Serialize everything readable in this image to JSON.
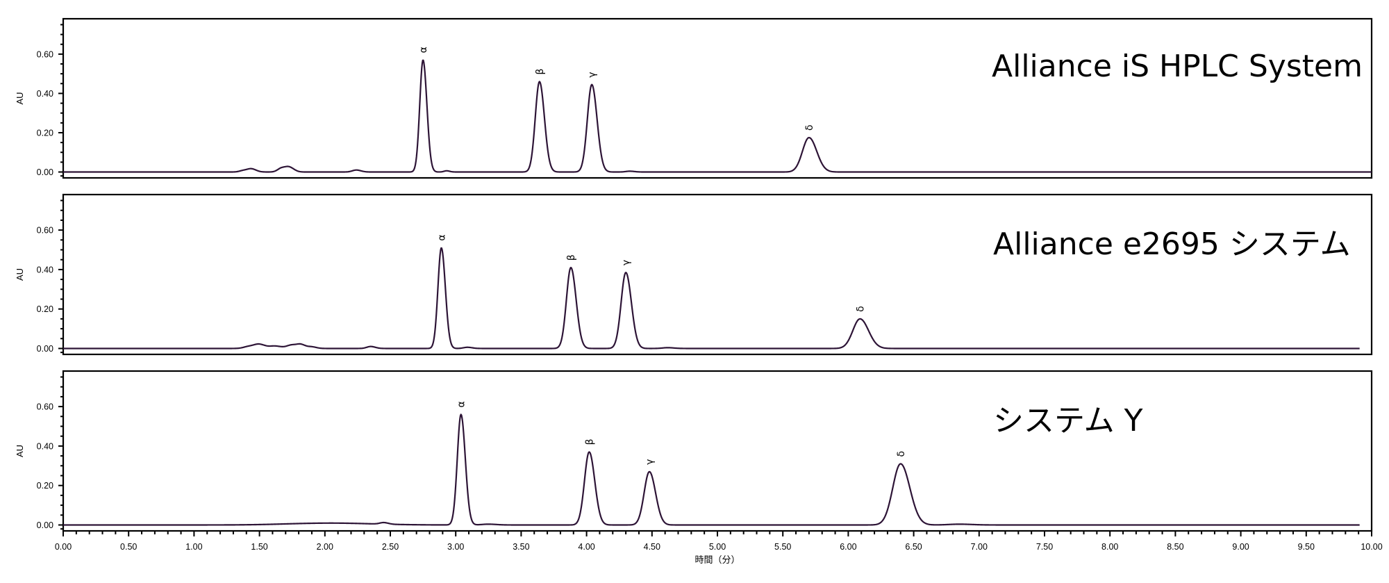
{
  "chart_data": {
    "type": "line",
    "xlabel": "時間（分）",
    "xlim": [
      0.0,
      10.0
    ],
    "x_ticks": [
      "0.00",
      "0.50",
      "1.00",
      "1.50",
      "2.00",
      "2.50",
      "3.00",
      "3.50",
      "4.00",
      "4.50",
      "5.00",
      "5.50",
      "6.00",
      "6.50",
      "7.00",
      "7.50",
      "8.00",
      "8.50",
      "9.00",
      "9.50",
      "10.00"
    ],
    "line_color": "#2d1436",
    "panels": [
      {
        "title": "Alliance iS HPLC System",
        "ylabel": "AU",
        "ylim": [
          -0.03,
          0.78
        ],
        "y_ticks": [
          "0.00",
          "0.20",
          "0.40",
          "0.60"
        ],
        "y_tick_values": [
          0.0,
          0.2,
          0.4,
          0.6
        ],
        "x_end": 10.0,
        "peaks": [
          {
            "label": "α",
            "rt": 2.75,
            "height": 0.57,
            "width": 0.025
          },
          {
            "label": "β",
            "rt": 3.64,
            "height": 0.46,
            "width": 0.032
          },
          {
            "label": "γ",
            "rt": 4.04,
            "height": 0.445,
            "width": 0.034
          },
          {
            "label": "δ",
            "rt": 5.7,
            "height": 0.175,
            "width": 0.05
          }
        ],
        "minor_peaks": [
          {
            "rt": 1.38,
            "height": 0.008,
            "width": 0.03
          },
          {
            "rt": 1.44,
            "height": 0.015,
            "width": 0.03
          },
          {
            "rt": 1.67,
            "height": 0.02,
            "width": 0.03
          },
          {
            "rt": 1.73,
            "height": 0.022,
            "width": 0.03
          },
          {
            "rt": 2.24,
            "height": 0.01,
            "width": 0.03
          },
          {
            "rt": 2.93,
            "height": 0.006,
            "width": 0.02
          },
          {
            "rt": 4.33,
            "height": 0.004,
            "width": 0.03
          }
        ]
      },
      {
        "title": "Alliance e2695 システム",
        "ylabel": "AU",
        "ylim": [
          -0.03,
          0.78
        ],
        "y_ticks": [
          "0.00",
          "0.20",
          "0.40",
          "0.60"
        ],
        "y_tick_values": [
          0.0,
          0.2,
          0.4,
          0.6
        ],
        "x_end": 9.91,
        "peaks": [
          {
            "label": "α",
            "rt": 2.89,
            "height": 0.51,
            "width": 0.026
          },
          {
            "label": "β",
            "rt": 3.88,
            "height": 0.41,
            "width": 0.034
          },
          {
            "label": "γ",
            "rt": 4.3,
            "height": 0.385,
            "width": 0.036
          },
          {
            "label": "δ",
            "rt": 6.09,
            "height": 0.15,
            "width": 0.055
          }
        ],
        "minor_peaks": [
          {
            "rt": 1.42,
            "height": 0.01,
            "width": 0.04
          },
          {
            "rt": 1.5,
            "height": 0.02,
            "width": 0.04
          },
          {
            "rt": 1.62,
            "height": 0.012,
            "width": 0.04
          },
          {
            "rt": 1.75,
            "height": 0.018,
            "width": 0.04
          },
          {
            "rt": 1.82,
            "height": 0.016,
            "width": 0.03
          },
          {
            "rt": 1.9,
            "height": 0.008,
            "width": 0.03
          },
          {
            "rt": 2.35,
            "height": 0.01,
            "width": 0.03
          },
          {
            "rt": 3.09,
            "height": 0.006,
            "width": 0.03
          },
          {
            "rt": 4.62,
            "height": 0.004,
            "width": 0.04
          }
        ]
      },
      {
        "title": "システム Y",
        "ylabel": "AU",
        "ylim": [
          -0.03,
          0.78
        ],
        "y_ticks": [
          "0.00",
          "0.20",
          "0.40",
          "0.60"
        ],
        "y_tick_values": [
          0.0,
          0.2,
          0.4,
          0.6
        ],
        "x_end": 9.91,
        "peaks": [
          {
            "label": "α",
            "rt": 3.04,
            "height": 0.56,
            "width": 0.028
          },
          {
            "label": "β",
            "rt": 4.02,
            "height": 0.37,
            "width": 0.036
          },
          {
            "label": "γ",
            "rt": 4.48,
            "height": 0.27,
            "width": 0.04
          },
          {
            "label": "δ",
            "rt": 6.4,
            "height": 0.31,
            "width": 0.06
          }
        ],
        "minor_peaks": [
          {
            "rt": 1.85,
            "height": 0.005,
            "width": 0.25
          },
          {
            "rt": 2.15,
            "height": 0.006,
            "width": 0.25
          },
          {
            "rt": 2.45,
            "height": 0.008,
            "width": 0.03
          },
          {
            "rt": 3.25,
            "height": 0.004,
            "width": 0.05
          },
          {
            "rt": 6.85,
            "height": 0.004,
            "width": 0.08
          }
        ]
      }
    ]
  }
}
